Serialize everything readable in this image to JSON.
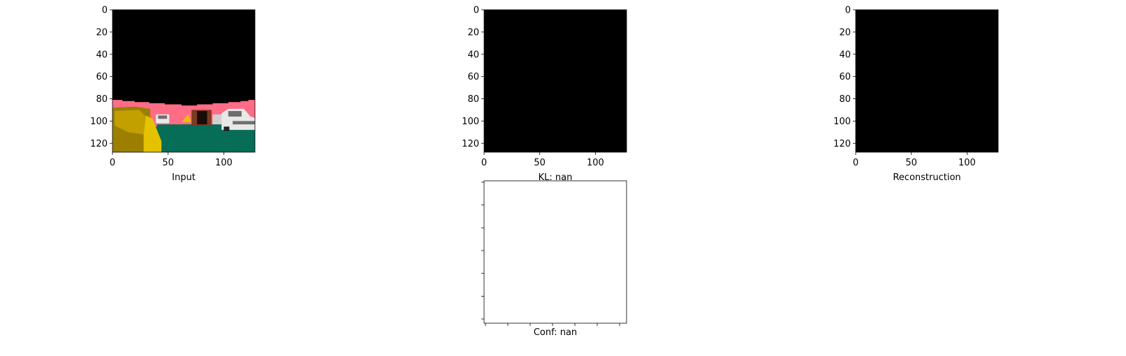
{
  "chart_data": [
    {
      "type": "image",
      "xlabel": "Input",
      "xticks": [
        0,
        50,
        100
      ],
      "yticks": [
        0,
        20,
        40,
        60,
        80,
        100,
        120
      ],
      "xlim": [
        0,
        128
      ],
      "ylim": [
        128,
        0
      ],
      "colors": {
        "sky": "#000000",
        "road_surface": "#ff6c86",
        "ground": "#066d57",
        "barrier": "#e4c200",
        "barrier_dark": "#9c7f00",
        "vehicle": "#e8e8e8",
        "vehicle_dark": "#6e6e6e",
        "building": "#7a3a22"
      }
    },
    {
      "type": "image",
      "xlabel": "KL: nan",
      "xticks": [
        0,
        50,
        100
      ],
      "yticks": [
        0,
        20,
        40,
        60,
        80,
        100,
        120
      ],
      "xlim": [
        0,
        128
      ],
      "ylim": [
        128,
        0
      ],
      "fill": "#000000"
    },
    {
      "type": "image",
      "xlabel": "Reconstruction",
      "xticks": [
        0,
        50,
        100
      ],
      "yticks": [
        0,
        20,
        40,
        60,
        80,
        100,
        120
      ],
      "xlim": [
        0,
        128
      ],
      "ylim": [
        128,
        0
      ],
      "fill": "#000000"
    },
    {
      "type": "image",
      "xlabel": "Conf: nan",
      "xticks_count": 7,
      "yticks_count": 7,
      "fill": "#ffffff"
    }
  ]
}
